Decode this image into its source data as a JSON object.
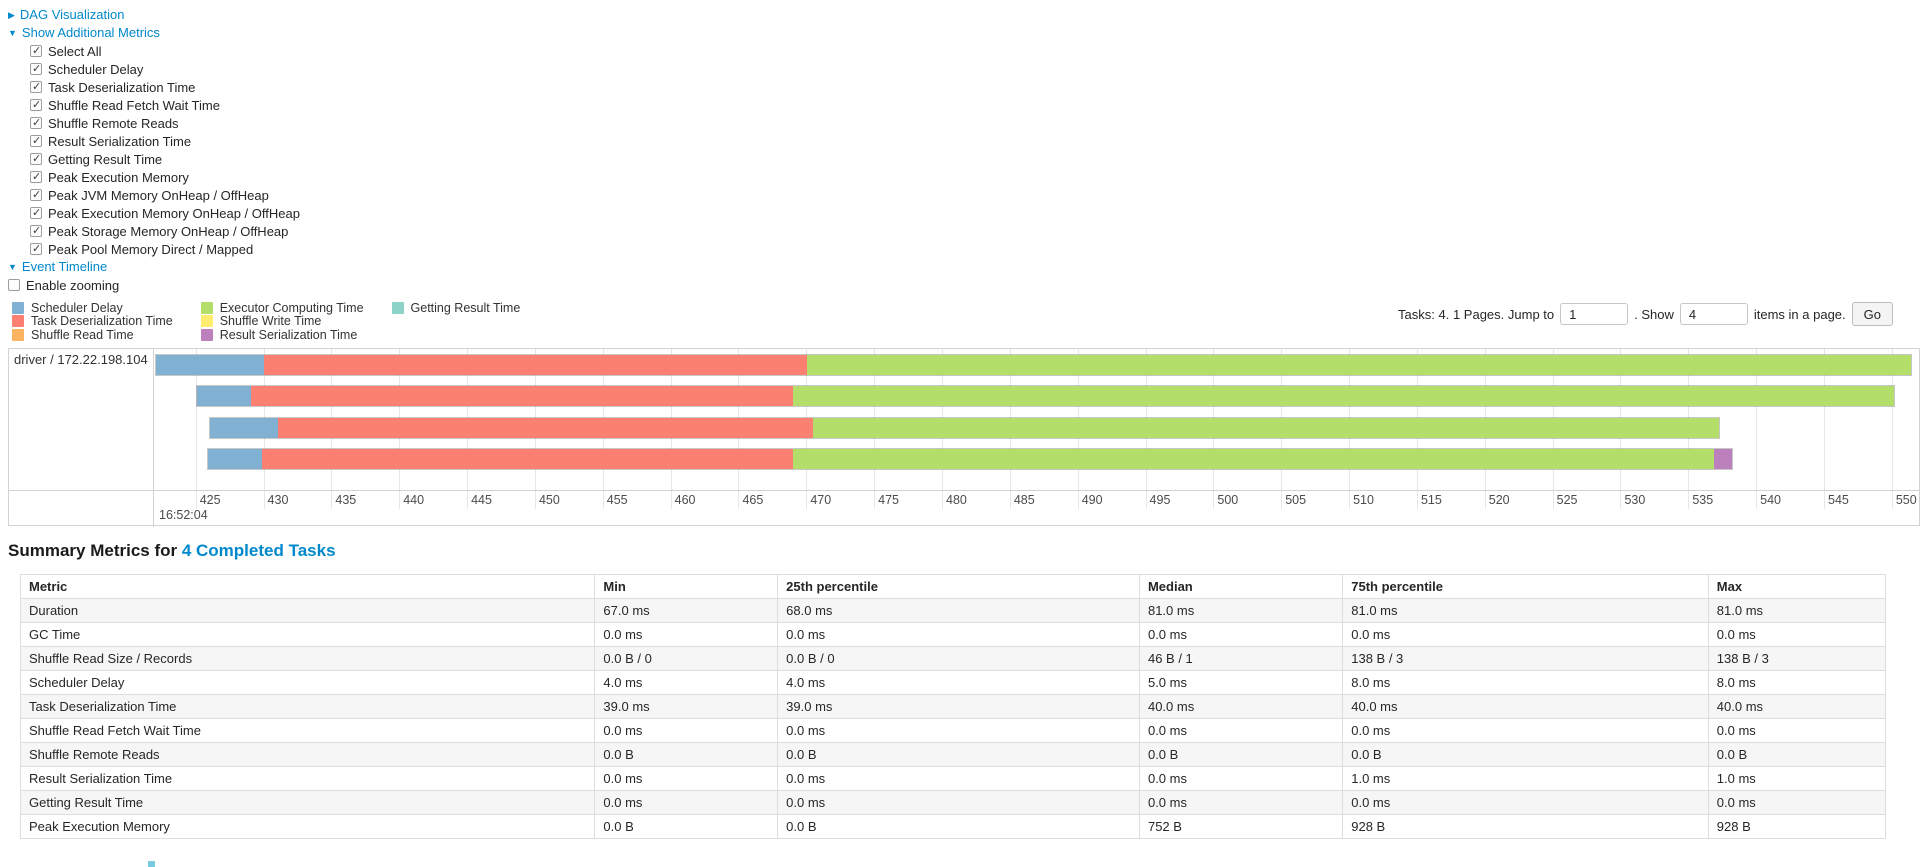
{
  "icons": {
    "collapsed_arrow": "▶",
    "expanded_arrow": "▼"
  },
  "colors": {
    "link": "#0088cc",
    "scheduler_delay": "#80B1D3",
    "task_deserialization": "#FB8072",
    "shuffle_read": "#FDB462",
    "executor_computing": "#B3DE69",
    "shuffle_write": "#FFED6F",
    "result_serialization": "#BC80BD",
    "getting_result": "#8DD3C7"
  },
  "sections": {
    "dag": {
      "label": "DAG Visualization"
    },
    "metrics": {
      "label": "Show Additional Metrics",
      "all_checked": true,
      "items": [
        "Select All",
        "Scheduler Delay",
        "Task Deserialization Time",
        "Shuffle Read Fetch Wait Time",
        "Shuffle Remote Reads",
        "Result Serialization Time",
        "Getting Result Time",
        "Peak Execution Memory",
        "Peak JVM Memory OnHeap / OffHeap",
        "Peak Execution Memory OnHeap / OffHeap",
        "Peak Storage Memory OnHeap / OffHeap",
        "Peak Pool Memory Direct / Mapped"
      ]
    },
    "timeline": {
      "label": "Event Timeline",
      "enable_zooming_label": "Enable zooming",
      "enable_zooming_checked": false
    }
  },
  "pagination": {
    "summary_text": "Tasks: 4. 1 Pages. Jump to",
    "jump_value": "1",
    "show_text": ". Show",
    "show_value": "4",
    "suffix_text": "items in a page.",
    "go_label": "Go"
  },
  "legend": {
    "columns": [
      [
        {
          "label": "Scheduler Delay",
          "color_key": "scheduler_delay"
        },
        {
          "label": "Task Deserialization Time",
          "color_key": "task_deserialization"
        },
        {
          "label": "Shuffle Read Time",
          "color_key": "shuffle_read"
        }
      ],
      [
        {
          "label": "Executor Computing Time",
          "color_key": "executor_computing"
        },
        {
          "label": "Shuffle Write Time",
          "color_key": "shuffle_write"
        },
        {
          "label": "Result Serialization Time",
          "color_key": "result_serialization"
        }
      ],
      [
        {
          "label": "Getting Result Time",
          "color_key": "getting_result"
        }
      ]
    ]
  },
  "chart_data": {
    "type": "timeline",
    "group_label": "driver / 172.22.198.104",
    "axis": {
      "major_label": "16:52:04",
      "unit": "ms within second 16:52:04",
      "window": [
        422,
        552
      ],
      "ticks": [
        425,
        430,
        435,
        440,
        445,
        450,
        455,
        460,
        465,
        470,
        475,
        480,
        485,
        490,
        495,
        500,
        505,
        510,
        515,
        520,
        525,
        530,
        535,
        540,
        545,
        550
      ]
    },
    "tasks": [
      {
        "segments": [
          {
            "type": "scheduler_delay",
            "start": 422.0,
            "end": 430.0
          },
          {
            "type": "task_deserialization",
            "start": 430.0,
            "end": 470.0
          },
          {
            "type": "executor_computing",
            "start": 470.0,
            "end": 551.5
          }
        ]
      },
      {
        "segments": [
          {
            "type": "scheduler_delay",
            "start": 425.0,
            "end": 429.0
          },
          {
            "type": "task_deserialization",
            "start": 429.0,
            "end": 469.0
          },
          {
            "type": "executor_computing",
            "start": 469.0,
            "end": 550.2
          }
        ]
      },
      {
        "segments": [
          {
            "type": "scheduler_delay",
            "start": 426.0,
            "end": 431.0
          },
          {
            "type": "task_deserialization",
            "start": 431.0,
            "end": 470.5
          },
          {
            "type": "executor_computing",
            "start": 470.5,
            "end": 537.3
          }
        ]
      },
      {
        "segments": [
          {
            "type": "scheduler_delay",
            "start": 425.8,
            "end": 429.8
          },
          {
            "type": "task_deserialization",
            "start": 429.8,
            "end": 469.0
          },
          {
            "type": "executor_computing",
            "start": 469.0,
            "end": 537.0
          },
          {
            "type": "result_serialization",
            "start": 537.0,
            "end": 538.3
          }
        ]
      }
    ]
  },
  "summary": {
    "heading_prefix": "Summary Metrics for ",
    "heading_link": "4 Completed Tasks",
    "table": {
      "columns": [
        "Metric",
        "Min",
        "25th percentile",
        "Median",
        "75th percentile",
        "Max"
      ],
      "rows": [
        [
          "Duration",
          "67.0 ms",
          "68.0 ms",
          "81.0 ms",
          "81.0 ms",
          "81.0 ms"
        ],
        [
          "GC Time",
          "0.0 ms",
          "0.0 ms",
          "0.0 ms",
          "0.0 ms",
          "0.0 ms"
        ],
        [
          "Shuffle Read Size / Records",
          "0.0 B / 0",
          "0.0 B / 0",
          "46 B / 1",
          "138 B / 3",
          "138 B / 3"
        ],
        [
          "Scheduler Delay",
          "4.0 ms",
          "4.0 ms",
          "5.0 ms",
          "8.0 ms",
          "8.0 ms"
        ],
        [
          "Task Deserialization Time",
          "39.0 ms",
          "39.0 ms",
          "40.0 ms",
          "40.0 ms",
          "40.0 ms"
        ],
        [
          "Shuffle Read Fetch Wait Time",
          "0.0 ms",
          "0.0 ms",
          "0.0 ms",
          "0.0 ms",
          "0.0 ms"
        ],
        [
          "Shuffle Remote Reads",
          "0.0 B",
          "0.0 B",
          "0.0 B",
          "0.0 B",
          "0.0 B"
        ],
        [
          "Result Serialization Time",
          "0.0 ms",
          "0.0 ms",
          "0.0 ms",
          "1.0 ms",
          "1.0 ms"
        ],
        [
          "Getting Result Time",
          "0.0 ms",
          "0.0 ms",
          "0.0 ms",
          "0.0 ms",
          "0.0 ms"
        ],
        [
          "Peak Execution Memory",
          "0.0 B",
          "0.0 B",
          "752 B",
          "928 B",
          "928 B"
        ]
      ]
    }
  }
}
